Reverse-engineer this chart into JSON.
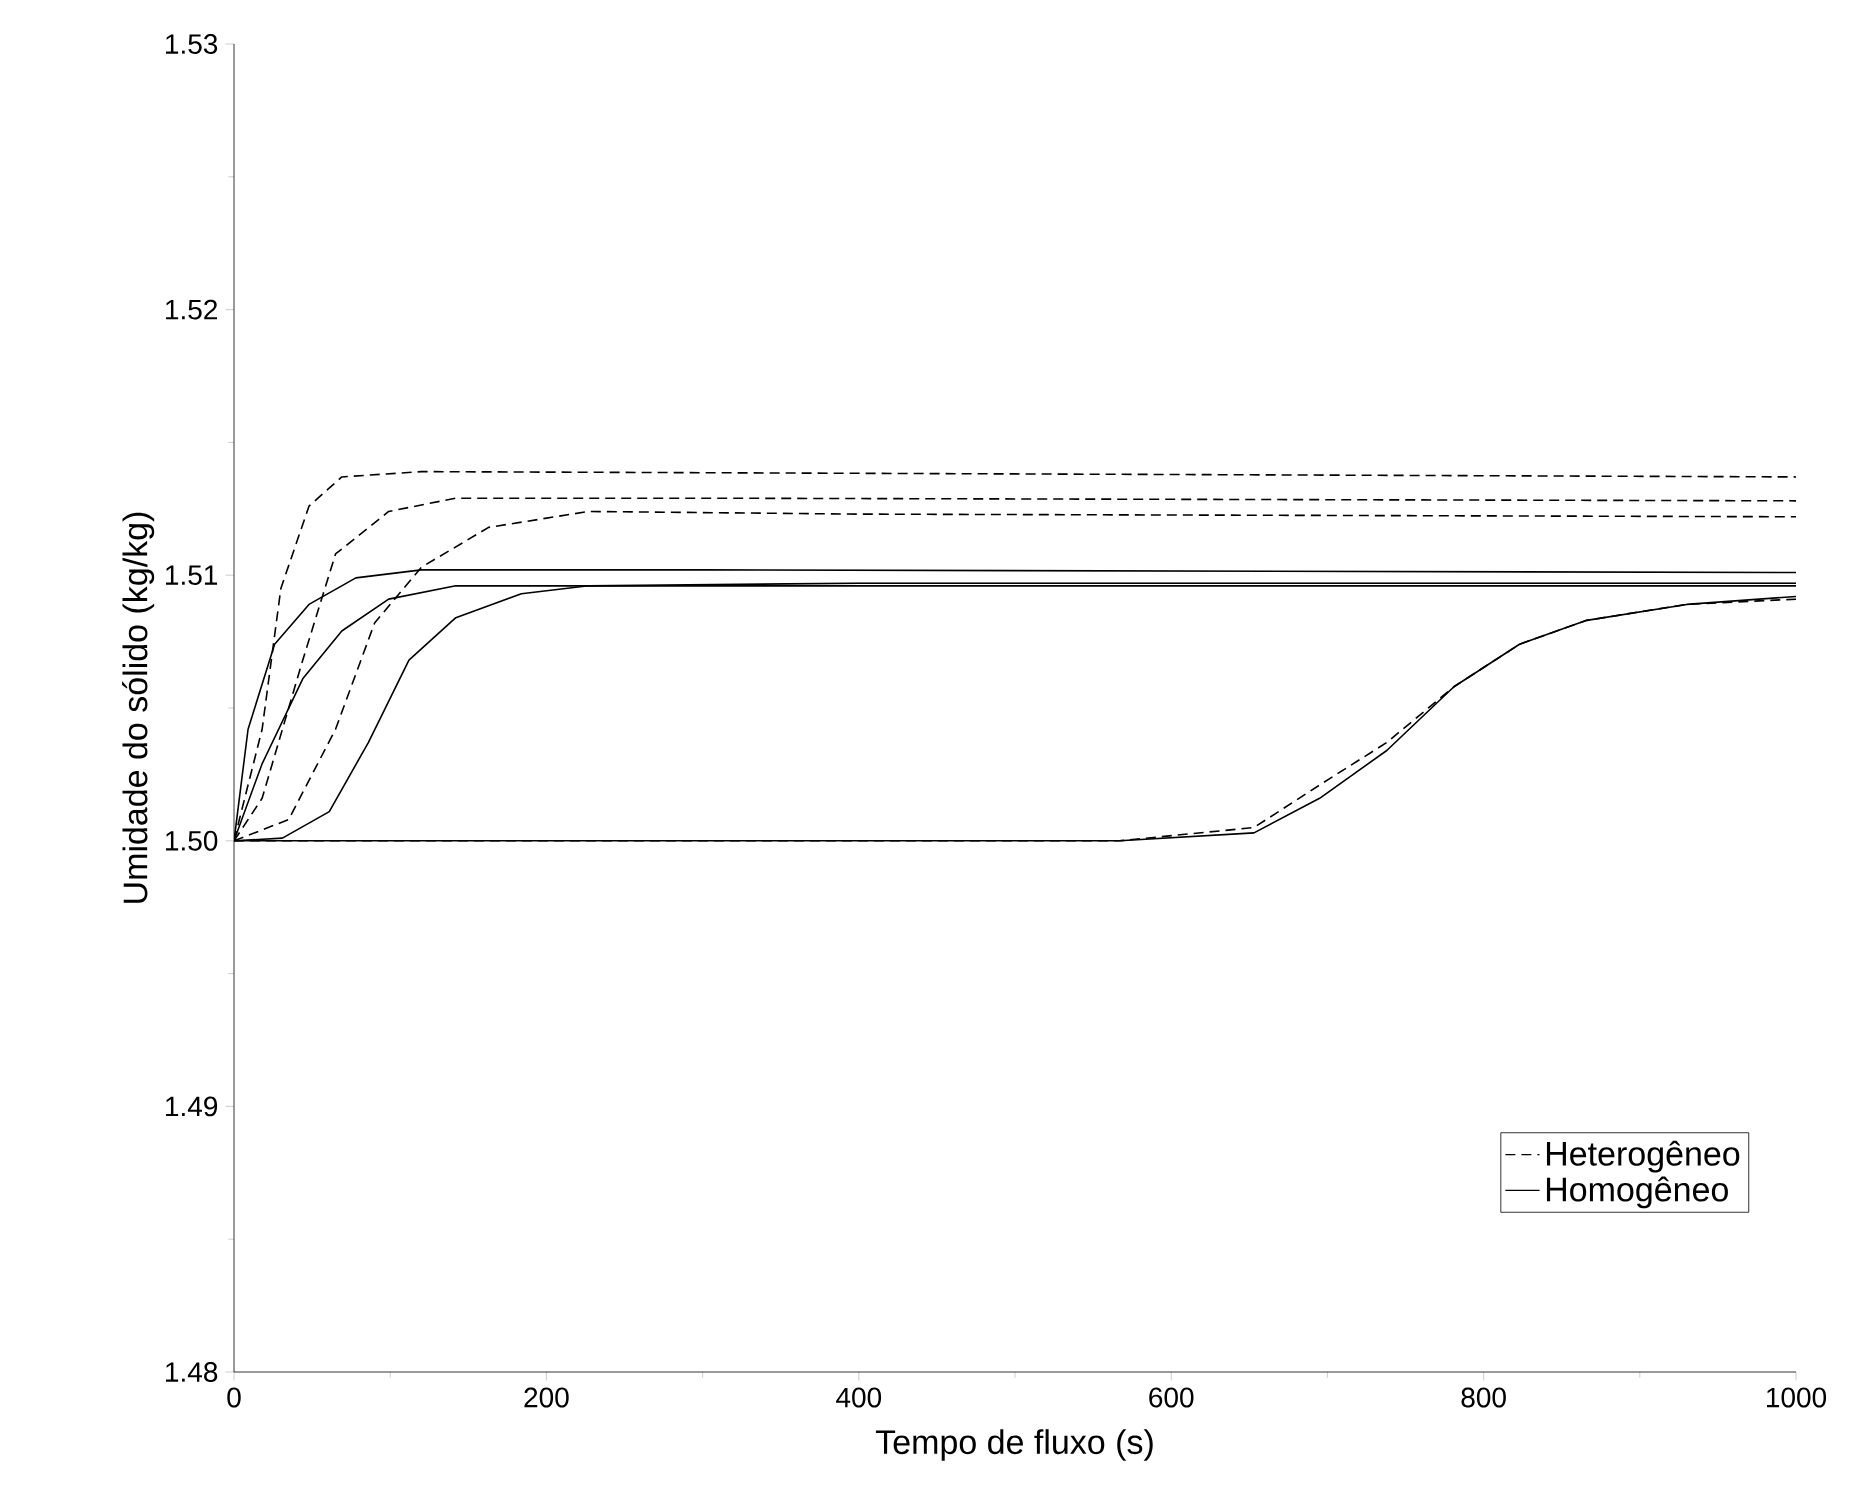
{
  "chart_data": {
    "type": "line",
    "xlabel": "Tempo de fluxo (s)",
    "ylabel": "Umidade do sólido (kg/kg)",
    "xlim": [
      0,
      1000
    ],
    "ylim": [
      1.48,
      1.53
    ],
    "xticks": [
      0,
      200,
      400,
      600,
      800,
      1000
    ],
    "yticks": [
      1.48,
      1.49,
      {
        "value": 1.5,
        "label": "1.50"
      },
      1.51,
      1.52,
      1.53
    ],
    "grid": false,
    "legend": "bottom right",
    "marker": "none",
    "series": [
      {
        "name": "Heterogêneo",
        "color": "#000000",
        "line_style": "dashed",
        "x": [
          0,
          18,
          30,
          48,
          69,
          120,
          1000
        ],
        "values": [
          1.5,
          1.5042,
          1.5095,
          1.5126,
          1.5137,
          1.5139,
          1.5137
        ]
      },
      {
        "color": "#000000",
        "line_style": "dashed",
        "x": [
          0,
          18,
          44,
          65,
          99,
          142,
          300,
          1000
        ],
        "values": [
          1.5,
          1.5016,
          1.5068,
          1.5108,
          1.5124,
          1.5129,
          1.5129,
          1.5128
        ]
      },
      {
        "color": "#000000",
        "line_style": "dashed",
        "x": [
          0,
          35,
          65,
          90,
          120,
          163,
          227,
          400,
          1000
        ],
        "values": [
          1.5,
          1.5008,
          1.5042,
          1.5082,
          1.5103,
          1.5118,
          1.5124,
          1.5123,
          1.5122
        ]
      },
      {
        "color": "#000000",
        "line_style": "dashed",
        "x": [
          0,
          567,
          653,
          695,
          738,
          781,
          823,
          866,
          930,
          1000
        ],
        "values": [
          1.5,
          1.5,
          1.5005,
          1.5021,
          1.5037,
          1.5058,
          1.5074,
          1.5083,
          1.5089,
          1.5091
        ]
      },
      {
        "name": "Homogêneo",
        "color": "#000000",
        "line_style": "solid",
        "x": [
          0,
          9,
          26,
          48,
          78,
          120,
          300,
          1000
        ],
        "values": [
          1.5,
          1.5042,
          1.5074,
          1.5089,
          1.5099,
          1.5102,
          1.5102,
          1.5101
        ]
      },
      {
        "color": "#000000",
        "line_style": "solid",
        "x": [
          0,
          18,
          44,
          69,
          99,
          142,
          250,
          1000
        ],
        "values": [
          1.5,
          1.5029,
          1.5061,
          1.5079,
          1.5091,
          1.5096,
          1.5096,
          1.5096
        ]
      },
      {
        "color": "#000000",
        "line_style": "solid",
        "x": [
          0,
          31,
          61,
          86,
          112,
          142,
          184,
          227,
          400,
          1000
        ],
        "values": [
          1.5,
          1.5001,
          1.5011,
          1.5037,
          1.5068,
          1.5084,
          1.5093,
          1.5096,
          1.5097,
          1.5097
        ]
      },
      {
        "color": "#000000",
        "line_style": "solid",
        "x": [
          0,
          567,
          653,
          695,
          738,
          781,
          823,
          866,
          930,
          1000
        ],
        "values": [
          1.5,
          1.5,
          1.5003,
          1.5016,
          1.5034,
          1.5058,
          1.5074,
          1.5083,
          1.5089,
          1.5092
        ]
      }
    ]
  }
}
